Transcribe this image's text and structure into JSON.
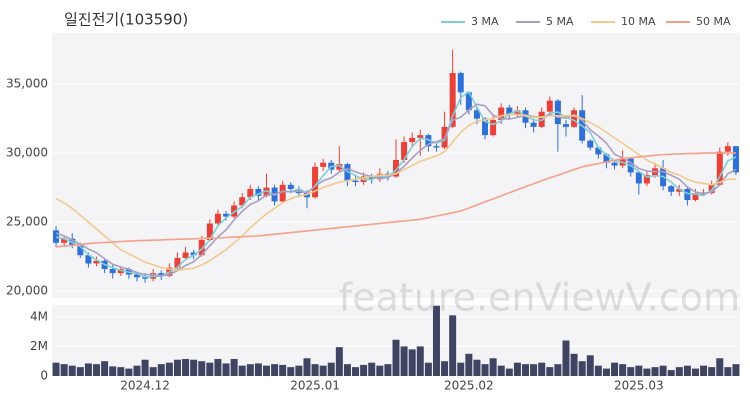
{
  "chart_data": {
    "type": "candlestick",
    "title": "일진전기(103590)",
    "watermark": "feature.enViewV.com",
    "up_color": "#e8413a",
    "down_color": "#2f6fd6",
    "grid": true,
    "legend": "top-right",
    "categories": [
      null,
      null,
      null,
      null,
      null,
      null,
      null,
      null,
      null,
      null,
      null,
      "2024.12",
      null,
      null,
      null,
      null,
      null,
      null,
      null,
      null,
      null,
      null,
      null,
      null,
      null,
      null,
      null,
      null,
      null,
      null,
      null,
      null,
      "2025.01",
      null,
      null,
      null,
      null,
      null,
      null,
      null,
      null,
      null,
      null,
      null,
      null,
      null,
      null,
      null,
      null,
      null,
      null,
      "2025.02",
      null,
      null,
      null,
      null,
      null,
      null,
      null,
      null,
      null,
      null,
      null,
      null,
      null,
      null,
      null,
      null,
      null,
      null,
      null,
      null,
      "2025.03",
      null,
      null,
      null,
      null,
      null,
      null,
      null,
      null,
      null,
      null,
      null,
      null
    ],
    "open": [
      24400,
      23500,
      23800,
      23300,
      22600,
      22000,
      22200,
      21600,
      21300,
      21600,
      21200,
      21000,
      20900,
      21300,
      21100,
      21700,
      22400,
      22800,
      22600,
      23700,
      24900,
      25600,
      25400,
      26200,
      26800,
      27400,
      26900,
      27500,
      26500,
      27700,
      27400,
      27100,
      26800,
      29000,
      29300,
      28800,
      29200,
      28000,
      27900,
      28300,
      28100,
      28500,
      28300,
      29500,
      30800,
      31100,
      31300,
      30500,
      30400,
      31900,
      35800,
      34400,
      33100,
      32500,
      31300,
      32400,
      33300,
      32800,
      33100,
      32200,
      31900,
      33000,
      33800,
      32100,
      31900,
      33100,
      30900,
      30400,
      29900,
      29300,
      29100,
      29600,
      28600,
      27800,
      28400,
      28900,
      27600,
      27200,
      27400,
      26600,
      27000,
      27100,
      27700,
      30100,
      30500
    ],
    "high": [
      24700,
      24000,
      24200,
      23500,
      22800,
      22500,
      22300,
      21900,
      21800,
      21700,
      21400,
      21300,
      21600,
      21500,
      22000,
      22800,
      23200,
      23000,
      24000,
      25200,
      25900,
      25800,
      26500,
      27100,
      27700,
      27600,
      28500,
      27700,
      28000,
      27900,
      27600,
      27300,
      29300,
      29600,
      29500,
      30500,
      29300,
      28300,
      28600,
      28500,
      28900,
      28700,
      31000,
      31200,
      31500,
      31700,
      31400,
      30800,
      33000,
      37500,
      35900,
      34500,
      33300,
      32600,
      32700,
      33600,
      33500,
      33400,
      33300,
      32500,
      33300,
      34100,
      33900,
      32400,
      33300,
      34200,
      31000,
      30500,
      30000,
      29500,
      30200,
      29700,
      28700,
      28700,
      29300,
      29500,
      27700,
      27700,
      27500,
      27400,
      27400,
      28000,
      30400,
      30800,
      30500
    ],
    "low": [
      23200,
      23200,
      23100,
      22400,
      21700,
      21800,
      21300,
      20900,
      21100,
      20900,
      20700,
      20600,
      20700,
      20800,
      21000,
      21500,
      22200,
      22300,
      22500,
      23600,
      24700,
      25100,
      25300,
      26000,
      26600,
      26600,
      26800,
      26200,
      26400,
      27100,
      26800,
      26000,
      26700,
      28700,
      28500,
      28600,
      27600,
      27600,
      27700,
      27800,
      27900,
      28000,
      28200,
      29300,
      30500,
      29800,
      30100,
      30100,
      30300,
      31800,
      33500,
      32800,
      32100,
      31000,
      31200,
      32100,
      32500,
      32600,
      31800,
      31500,
      31800,
      32800,
      30100,
      31200,
      31800,
      30700,
      30200,
      29600,
      28900,
      28800,
      28900,
      28300,
      27000,
      27600,
      28200,
      27300,
      26900,
      26900,
      26200,
      26500,
      26900,
      27000,
      27600,
      29800,
      28400
    ],
    "close": [
      23500,
      23800,
      23300,
      22600,
      22000,
      22200,
      21600,
      21300,
      21600,
      21200,
      21000,
      20900,
      21300,
      21100,
      21700,
      22400,
      22800,
      22600,
      23700,
      24900,
      25600,
      25400,
      26200,
      26800,
      27400,
      26900,
      27500,
      26500,
      27700,
      27400,
      27100,
      26800,
      29000,
      29300,
      28800,
      29200,
      28000,
      27900,
      28300,
      28100,
      28500,
      28300,
      29500,
      30800,
      31100,
      31300,
      30500,
      30400,
      31900,
      35800,
      34400,
      33100,
      32500,
      31300,
      32400,
      33300,
      32800,
      33100,
      32200,
      31900,
      33000,
      33800,
      32100,
      31900,
      33100,
      30900,
      30400,
      29900,
      29300,
      29100,
      29600,
      28600,
      27800,
      28400,
      28900,
      27600,
      27200,
      27400,
      26600,
      27100,
      27100,
      27700,
      30100,
      30500,
      28600
    ],
    "ylim": [
      19500,
      38700
    ],
    "yticks": [
      {
        "value": 20000,
        "label": "20,000"
      },
      {
        "value": 25000,
        "label": "25,000"
      },
      {
        "value": 30000,
        "label": "30,000"
      },
      {
        "value": 35000,
        "label": "35,000"
      }
    ],
    "series": [
      {
        "name": "3 MA",
        "color": "#7fcfd6",
        "values": [
          23900,
          23800,
          23530,
          23230,
          22630,
          22270,
          21930,
          21700,
          21500,
          21370,
          21270,
          21030,
          21070,
          21100,
          21370,
          21730,
          22300,
          22600,
          23030,
          23730,
          24730,
          25300,
          25730,
          26130,
          26800,
          27030,
          27270,
          26970,
          27230,
          27200,
          27400,
          27100,
          27630,
          28370,
          29030,
          29100,
          28670,
          28370,
          28070,
          28100,
          28300,
          28300,
          28770,
          29530,
          30470,
          31070,
          30970,
          30730,
          30930,
          32700,
          34030,
          34430,
          33330,
          32300,
          32070,
          32330,
          32830,
          33070,
          32700,
          32400,
          32370,
          32900,
          32970,
          32600,
          32370,
          31970,
          31470,
          30400,
          29870,
          29430,
          29330,
          29100,
          28670,
          28270,
          28370,
          28300,
          27900,
          27400,
          27070,
          27030,
          26930,
          27300,
          28300,
          29430,
          29730
        ]
      },
      {
        "name": "5 MA",
        "color": "#a99fc4",
        "values": [
          24200,
          24000,
          23700,
          23400,
          23040,
          22780,
          22340,
          21940,
          21740,
          21580,
          21340,
          21200,
          21200,
          21100,
          21200,
          21480,
          21860,
          22120,
          22640,
          23280,
          23920,
          24440,
          25160,
          25780,
          26280,
          26540,
          26960,
          27020,
          27200,
          27200,
          27240,
          27100,
          27600,
          28000,
          28200,
          28620,
          28860,
          28640,
          28440,
          28300,
          28160,
          28220,
          28540,
          29040,
          29640,
          30200,
          30640,
          30820,
          31040,
          32380,
          32600,
          33120,
          33540,
          33420,
          32740,
          32520,
          32460,
          32580,
          32760,
          32660,
          32600,
          32800,
          32600,
          32540,
          32780,
          32360,
          31680,
          31240,
          30720,
          29920,
          29660,
          29300,
          28880,
          28700,
          28660,
          28660,
          28380,
          28100,
          27540,
          27180,
          27080,
          27180,
          27720,
          28500,
          28800
        ]
      },
      {
        "name": "10 MA",
        "color": "#f2c98c",
        "values": [
          26700,
          26400,
          26000,
          25500,
          25000,
          24500,
          24000,
          23500,
          23000,
          22700,
          22400,
          22100,
          21900,
          21700,
          21600,
          21500,
          21600,
          21650,
          21900,
          22200,
          22600,
          23000,
          23500,
          24000,
          24600,
          25100,
          25600,
          26000,
          26400,
          26700,
          26900,
          27000,
          27250,
          27500,
          27700,
          27900,
          28000,
          28100,
          28200,
          28300,
          28400,
          28400,
          28500,
          28800,
          29100,
          29400,
          29600,
          29800,
          30100,
          30800,
          31500,
          32000,
          32300,
          32400,
          32500,
          32700,
          32800,
          32800,
          32700,
          32600,
          32600,
          32700,
          32700,
          32700,
          32700,
          32500,
          32200,
          31900,
          31500,
          31100,
          30700,
          30300,
          29900,
          29500,
          29200,
          28900,
          28600,
          28400,
          28100,
          27900,
          27800,
          27700,
          27900,
          28100,
          28100
        ]
      },
      {
        "name": "50 MA",
        "color": "#f4a08a",
        "values": [
          23200,
          23260,
          23320,
          23380,
          23440,
          23500,
          23530,
          23560,
          23590,
          23620,
          23650,
          23670,
          23690,
          23710,
          23730,
          23750,
          23770,
          23790,
          23810,
          23830,
          23850,
          23880,
          23910,
          23940,
          23970,
          24000,
          24060,
          24120,
          24180,
          24240,
          24300,
          24360,
          24420,
          24480,
          24540,
          24600,
          24660,
          24720,
          24780,
          24840,
          24900,
          24960,
          25020,
          25080,
          25140,
          25200,
          25320,
          25440,
          25560,
          25680,
          25800,
          26020,
          26240,
          26460,
          26680,
          26900,
          27120,
          27340,
          27560,
          27780,
          28000,
          28200,
          28400,
          28600,
          28800,
          29000,
          29120,
          29240,
          29360,
          29480,
          29600,
          29660,
          29720,
          29780,
          29840,
          29900,
          29920,
          29940,
          29960,
          29980,
          30000,
          30000,
          30000,
          30000,
          30000
        ]
      }
    ],
    "volume": {
      "color": "#3f4463",
      "ylim": [
        0,
        4800000
      ],
      "yticks": [
        0,
        {
          "value": 2000000,
          "label": "2M"
        },
        {
          "value": 4000000,
          "label": "4M"
        }
      ],
      "values": [
        900000,
        800000,
        700000,
        600000,
        850000,
        800000,
        1000000,
        650000,
        600000,
        500000,
        700000,
        1100000,
        600000,
        800000,
        900000,
        1100000,
        1150000,
        1100000,
        1000000,
        900000,
        1150000,
        850000,
        1150000,
        700000,
        800000,
        850000,
        700000,
        800000,
        750000,
        600000,
        700000,
        1200000,
        800000,
        700000,
        900000,
        1950000,
        800000,
        600000,
        750000,
        900000,
        700000,
        800000,
        2450000,
        2000000,
        1800000,
        2000000,
        900000,
        4750000,
        1000000,
        4100000,
        900000,
        1500000,
        1100000,
        800000,
        1200000,
        700000,
        500000,
        900000,
        800000,
        800000,
        900000,
        600000,
        800000,
        2400000,
        1500000,
        1000000,
        1400000,
        700000,
        500000,
        900000,
        800000,
        600000,
        700000,
        500000,
        600000,
        700000,
        400000,
        600000,
        700000,
        500000,
        700000,
        600000,
        1200000,
        600000,
        800000
      ]
    }
  }
}
